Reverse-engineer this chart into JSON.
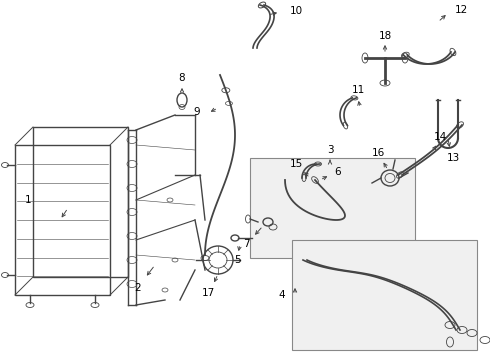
{
  "bg_color": "#ffffff",
  "line_color": "#444444",
  "text_color": "#000000",
  "fig_width": 4.9,
  "fig_height": 3.6,
  "dpi": 100,
  "lw": 1.0,
  "label_fontsize": 7.5
}
